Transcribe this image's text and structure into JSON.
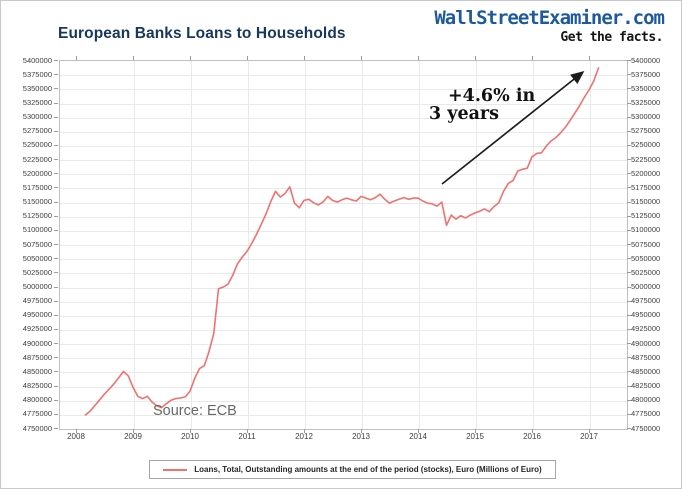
{
  "header": {
    "title": "European Banks Loans to Households",
    "brand": "WallStreetExaminer.com",
    "tagline": "Get the facts."
  },
  "annotation": {
    "line1": "+4.6% in",
    "line2": "3 years"
  },
  "source_label": "Source: ECB",
  "legend": {
    "label": "Loans, Total, Outstanding amounts at the end of the period (stocks), Euro (Millions of Euro)"
  },
  "colors": {
    "line": "#f4706e",
    "title_navy": "#17375d",
    "brand_blue": "#1d5a9b",
    "grid": "#e9e9e9",
    "axis_text": "#3f3f3f",
    "arrow": "#1c1c1c"
  },
  "chart_data": {
    "type": "line",
    "title": "European Banks Loans to Households",
    "xlabel": "",
    "ylabel": "",
    "ylim": [
      4750000,
      5400000
    ],
    "ytick_step": 25000,
    "y_axis_sides": [
      "left",
      "right"
    ],
    "grid": true,
    "legend_position": "bottom",
    "categories": [
      "2008",
      "2009",
      "2010",
      "2011",
      "2012",
      "2013",
      "2014",
      "2015",
      "2016",
      "2017"
    ],
    "x_start": 2008.1667,
    "x_step_years": 0.0833,
    "series": [
      {
        "name": "Loans, Total, Outstanding amounts at the end of the period (stocks), Euro (Millions of Euro)",
        "values": [
          4773000,
          4780000,
          4790000,
          4800000,
          4810000,
          4819000,
          4828000,
          4839000,
          4850000,
          4842000,
          4822000,
          4806000,
          4802000,
          4806000,
          4796000,
          4789000,
          4786000,
          4793000,
          4799000,
          4802000,
          4803000,
          4805000,
          4815000,
          4838000,
          4855000,
          4860000,
          4885000,
          4917000,
          4996000,
          4999000,
          5004000,
          5020000,
          5040000,
          5052000,
          5062000,
          5076000,
          5092000,
          5110000,
          5128000,
          5150000,
          5168000,
          5158000,
          5164000,
          5176000,
          5147000,
          5139000,
          5152000,
          5154000,
          5148000,
          5144000,
          5149000,
          5159000,
          5152000,
          5149000,
          5153000,
          5156000,
          5153000,
          5151000,
          5159000,
          5156000,
          5153000,
          5157000,
          5163000,
          5154000,
          5147000,
          5151000,
          5154000,
          5157000,
          5154000,
          5156000,
          5156000,
          5151000,
          5147000,
          5146000,
          5142000,
          5149000,
          5108000,
          5126000,
          5119000,
          5125000,
          5121000,
          5126000,
          5130000,
          5133000,
          5137000,
          5132000,
          5141000,
          5148000,
          5168000,
          5182000,
          5187000,
          5204000,
          5207000,
          5209000,
          5229000,
          5235000,
          5236000,
          5248000,
          5257000,
          5263000,
          5271000,
          5281000,
          5293000,
          5306000,
          5319000,
          5334000,
          5347000,
          5363000,
          5386000
        ]
      }
    ],
    "annotations": [
      {
        "text": "+4.6% in 3 years",
        "arrow": true
      }
    ]
  }
}
